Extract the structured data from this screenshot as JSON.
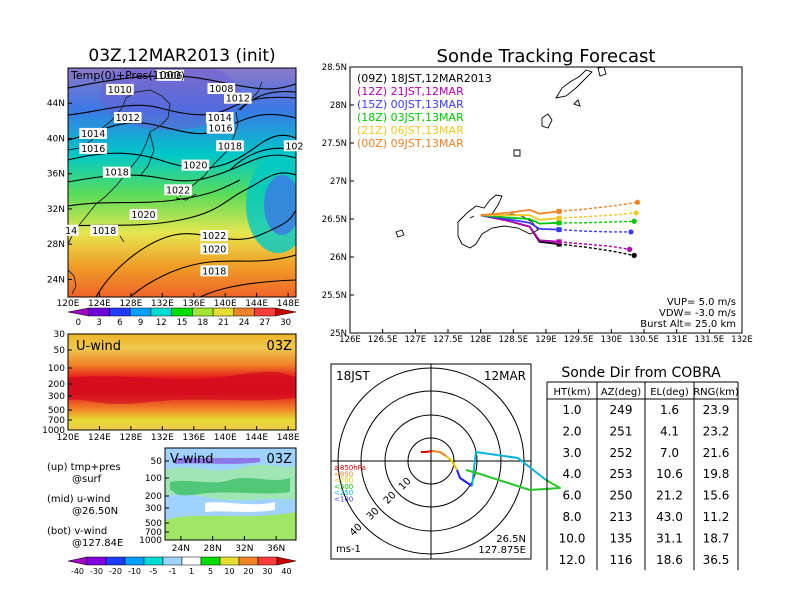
{
  "main_map": {
    "title": "03Z,12MAR2013 (init)",
    "label": "Temp(0)+Pres(1000)",
    "lon_ticks": [
      "120E",
      "124E",
      "128E",
      "132E",
      "136E",
      "140E",
      "144E",
      "148E"
    ],
    "lat_ticks": [
      "24N",
      "28N",
      "32N",
      "36N",
      "40N",
      "44N"
    ],
    "isobars": [
      {
        "v": "1010",
        "lon": 126.6,
        "lat": 45.4
      },
      {
        "v": "1008",
        "lon": 139.5,
        "lat": 45.5
      },
      {
        "v": "1006",
        "lon": 133.0,
        "lat": 47.0
      },
      {
        "v": "1012",
        "lon": 141.6,
        "lat": 44.4
      },
      {
        "v": "1012",
        "lon": 127.6,
        "lat": 42.2
      },
      {
        "v": "1014",
        "lon": 139.3,
        "lat": 42.2
      },
      {
        "v": "1016",
        "lon": 139.4,
        "lat": 41.0
      },
      {
        "v": "1014",
        "lon": 123.2,
        "lat": 40.4
      },
      {
        "v": "1016",
        "lon": 123.2,
        "lat": 38.7
      },
      {
        "v": "1018",
        "lon": 140.6,
        "lat": 39.0
      },
      {
        "v": "102",
        "lon": 148.8,
        "lat": 39.0
      },
      {
        "v": "1020",
        "lon": 136.2,
        "lat": 36.8
      },
      {
        "v": "1018",
        "lon": 126.2,
        "lat": 36.0
      },
      {
        "v": "1022",
        "lon": 134.0,
        "lat": 34.0
      },
      {
        "v": "1020",
        "lon": 129.6,
        "lat": 31.2
      },
      {
        "v": "14",
        "lon": 120.4,
        "lat": 29.4
      },
      {
        "v": "1018",
        "lon": 124.6,
        "lat": 29.4
      },
      {
        "v": "1022",
        "lon": 138.6,
        "lat": 28.8
      },
      {
        "v": "1020",
        "lon": 138.6,
        "lat": 27.3
      },
      {
        "v": "1018",
        "lon": 138.6,
        "lat": 24.8
      }
    ],
    "colorbar": [
      "0",
      "3",
      "6",
      "9",
      "12",
      "15",
      "18",
      "21",
      "24",
      "27",
      "30"
    ],
    "colorbar_colors": [
      "#a000c8",
      "#6e00dc",
      "#1e3cff",
      "#00a0ff",
      "#00dcd2",
      "#00dc00",
      "#a0e632",
      "#e6dc32",
      "#f08228",
      "#fa3c3c",
      "#c80000"
    ]
  },
  "u_wind": {
    "label": "U-wind",
    "time": "03Z",
    "p_ticks": [
      "30",
      "50",
      "100",
      "200",
      "300",
      "500",
      "700",
      "1000"
    ],
    "lon_ticks": [
      "120E",
      "124E",
      "128E",
      "132E",
      "136E",
      "140E",
      "144E",
      "148E"
    ]
  },
  "v_wind": {
    "label": "V-wind",
    "time": "03Z",
    "p_ticks": [
      "50",
      "100",
      "200",
      "300",
      "500",
      "700",
      "1000"
    ],
    "lat_ticks": [
      "24N",
      "28N",
      "32N",
      "36N"
    ],
    "colorbar": [
      "-40",
      "-30",
      "-20",
      "-10",
      "-5",
      "-1",
      "1",
      "5",
      "10",
      "20",
      "30",
      "40"
    ],
    "colorbar_colors": [
      "#a000c8",
      "#8200dc",
      "#1e3cff",
      "#00a0ff",
      "#00dcd2",
      "#a0d2ff",
      "#ffffff",
      "#00dc00",
      "#e6dc32",
      "#f08228",
      "#fa3c3c",
      "#c80000"
    ]
  },
  "legend_text": [
    {
      "a": "(up) tmp+pres",
      "b": "@surf"
    },
    {
      "a": "(mid) u-wind",
      "b": "@26.50N"
    },
    {
      "a": "(bot) v-wind",
      "b": "@127.84E"
    }
  ],
  "chart_data": {
    "type": "line",
    "title": "Sonde Tracking Forecast",
    "xlabel": "",
    "ylabel": "",
    "xlim": [
      126.0,
      132.0
    ],
    "ylim": [
      25.0,
      28.5
    ],
    "x_ticks": [
      "126E",
      "126.5E",
      "127E",
      "127.5E",
      "128E",
      "128.5E",
      "129E",
      "129.5E",
      "130E",
      "130.5E",
      "131E",
      "131.5E",
      "132E"
    ],
    "y_ticks": [
      "25N",
      "25.5N",
      "26N",
      "26.5N",
      "27N",
      "27.5N",
      "28N",
      "28.5N"
    ],
    "series": [
      {
        "name": "(09Z) 18JST,12MAR2013",
        "color": "#000000",
        "x": [
          128.0,
          128.4,
          128.75,
          128.9,
          129.2,
          129.6,
          130.0,
          130.35
        ],
        "y": [
          26.55,
          26.48,
          26.4,
          26.2,
          26.17,
          26.13,
          26.08,
          26.02
        ]
      },
      {
        "name": "(12Z) 21JST,12MAR",
        "color": "#b400b4",
        "x": [
          128.0,
          128.4,
          128.75,
          128.9,
          129.2,
          129.6,
          130.0,
          130.28
        ],
        "y": [
          26.55,
          26.48,
          26.4,
          26.22,
          26.2,
          26.17,
          26.14,
          26.1
        ]
      },
      {
        "name": "(15Z) 00JST,13MAR",
        "color": "#3c3cff",
        "x": [
          128.0,
          128.4,
          128.75,
          128.9,
          129.2,
          129.6,
          130.0,
          130.3
        ],
        "y": [
          26.55,
          26.5,
          26.45,
          26.37,
          26.36,
          26.34,
          26.33,
          26.33
        ]
      },
      {
        "name": "(18Z) 03JST,13MAR",
        "color": "#00c800",
        "x": [
          128.0,
          128.4,
          128.75,
          128.9,
          129.2,
          129.6,
          130.0,
          130.35
        ],
        "y": [
          26.55,
          26.52,
          26.5,
          26.44,
          26.45,
          26.45,
          26.46,
          26.47
        ]
      },
      {
        "name": "(21Z) 06JST,13MAR",
        "color": "#f0c828",
        "x": [
          128.0,
          128.4,
          128.75,
          128.9,
          129.2,
          129.6,
          130.0,
          130.38
        ],
        "y": [
          26.55,
          26.55,
          26.55,
          26.49,
          26.51,
          26.53,
          26.55,
          26.58
        ]
      },
      {
        "name": "(00Z) 09JST,13MAR",
        "color": "#f08228",
        "x": [
          128.0,
          128.4,
          128.75,
          128.9,
          129.2,
          129.6,
          130.0,
          130.4
        ],
        "y": [
          26.55,
          26.58,
          26.62,
          26.57,
          26.6,
          26.63,
          26.67,
          26.72
        ]
      }
    ],
    "params": [
      "VUP=  5.0  m/s",
      "VDW= -3.0  m/s",
      "Burst Alt= 25.0  km"
    ]
  },
  "polar": {
    "top_left": "18JST",
    "top_right": "12MAR",
    "ring_labels": [
      "10",
      "20",
      "30",
      "40"
    ],
    "level_labels": [
      {
        "t": "≥850hPa",
        "c": "#dc0000"
      },
      {
        "t": "<850",
        "c": "#f08228"
      },
      {
        "t": "<700",
        "c": "#e6c800"
      },
      {
        "t": "<500",
        "c": "#00b400"
      },
      {
        "t": "<250",
        "c": "#00b4dc"
      },
      {
        "t": "<100",
        "c": "#3c3cff"
      }
    ],
    "bottom_left": "ms-1",
    "bottom_right_1": "26.5N",
    "bottom_right_2": "127.875E"
  },
  "table": {
    "title": "Sonde Dir from COBRA",
    "headers": [
      "HT(km)",
      "AZ(deg)",
      "EL(deg)",
      "RNG(km)"
    ],
    "rows": [
      [
        "1.0",
        "249",
        "1.6",
        "23.9"
      ],
      [
        "2.0",
        "251",
        "4.1",
        "23.2"
      ],
      [
        "3.0",
        "252",
        "7.0",
        "21.6"
      ],
      [
        "4.0",
        "253",
        "10.6",
        "19.8"
      ],
      [
        "6.0",
        "250",
        "21.2",
        "15.6"
      ],
      [
        "8.0",
        "213",
        "43.0",
        "11.2"
      ],
      [
        "10.0",
        "135",
        "31.1",
        "18.7"
      ],
      [
        "12.0",
        "116",
        "18.6",
        "36.5"
      ]
    ]
  }
}
